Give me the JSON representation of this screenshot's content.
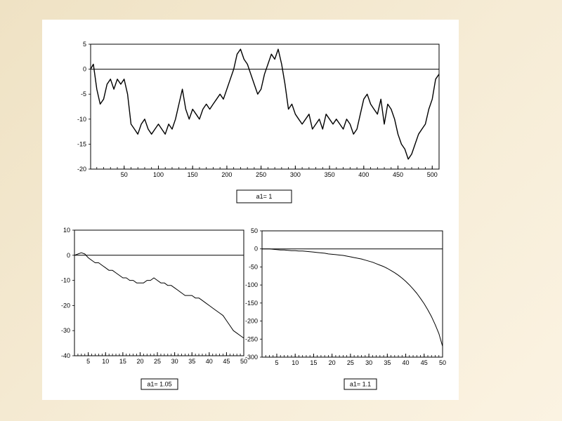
{
  "chart_data": [
    {
      "type": "line",
      "title": "",
      "legend_label": "a1= 1",
      "x_range": [
        1,
        510
      ],
      "ylim": [
        -20,
        5
      ],
      "x_ticks": [
        50,
        100,
        150,
        200,
        250,
        300,
        350,
        400,
        450,
        500
      ],
      "y_ticks": [
        5,
        0,
        -5,
        -10,
        -15,
        -20
      ],
      "zero_line": true,
      "series": [
        {
          "x": [
            1,
            5,
            10,
            15,
            20,
            25,
            30,
            35,
            40,
            45,
            50,
            55,
            60,
            65,
            70,
            75,
            80,
            85,
            90,
            95,
            100,
            105,
            110,
            115,
            120,
            125,
            130,
            135,
            140,
            145,
            150,
            155,
            160,
            165,
            170,
            175,
            180,
            185,
            190,
            195,
            200,
            205,
            210,
            215,
            220,
            225,
            230,
            235,
            240,
            245,
            250,
            255,
            260,
            265,
            270,
            275,
            280,
            285,
            290,
            295,
            300,
            305,
            310,
            315,
            320,
            325,
            330,
            335,
            340,
            345,
            350,
            355,
            360,
            365,
            370,
            375,
            380,
            385,
            390,
            395,
            400,
            405,
            410,
            415,
            420,
            425,
            430,
            435,
            440,
            445,
            450,
            455,
            460,
            465,
            470,
            475,
            480,
            485,
            490,
            495,
            500,
            505,
            510
          ],
          "y": [
            0,
            1,
            -4,
            -7,
            -6,
            -3,
            -2,
            -4,
            -2,
            -3,
            -2,
            -5,
            -11,
            -12,
            -13,
            -11,
            -10,
            -12,
            -13,
            -12,
            -11,
            -12,
            -13,
            -11,
            -12,
            -10,
            -7,
            -4,
            -8,
            -10,
            -8,
            -9,
            -10,
            -8,
            -7,
            -8,
            -7,
            -6,
            -5,
            -6,
            -4,
            -2,
            0,
            3,
            4,
            2,
            1,
            -1,
            -3,
            -5,
            -4,
            -1,
            1,
            3,
            2,
            4,
            1,
            -3,
            -8,
            -7,
            -9,
            -10,
            -11,
            -10,
            -9,
            -12,
            -11,
            -10,
            -12,
            -9,
            -10,
            -11,
            -10,
            -11,
            -12,
            -10,
            -11,
            -13,
            -12,
            -9,
            -6,
            -5,
            -7,
            -8,
            -9,
            -6,
            -11,
            -7,
            -8,
            -10,
            -13,
            -15,
            -16,
            -18,
            -17,
            -15,
            -13,
            -12,
            -11,
            -8,
            -6,
            -2,
            -1
          ]
        }
      ]
    },
    {
      "type": "line",
      "title": "",
      "legend_label": "a1= 1.05",
      "x_range": [
        1,
        50
      ],
      "ylim": [
        -40,
        10
      ],
      "x_ticks": [
        5,
        10,
        15,
        20,
        25,
        30,
        35,
        40,
        45,
        50
      ],
      "y_ticks": [
        10,
        0,
        -10,
        -20,
        -30,
        -40
      ],
      "zero_line": true,
      "series": [
        {
          "x": [
            1,
            2,
            3,
            4,
            5,
            6,
            7,
            8,
            9,
            10,
            11,
            12,
            13,
            14,
            15,
            16,
            17,
            18,
            19,
            20,
            21,
            22,
            23,
            24,
            25,
            26,
            27,
            28,
            29,
            30,
            31,
            32,
            33,
            34,
            35,
            36,
            37,
            38,
            39,
            40,
            41,
            42,
            43,
            44,
            45,
            46,
            47,
            48,
            49,
            50
          ],
          "y": [
            0,
            0.5,
            1,
            0.5,
            -1,
            -2,
            -3,
            -3,
            -4,
            -5,
            -6,
            -6,
            -7,
            -8,
            -9,
            -9,
            -10,
            -10,
            -11,
            -11,
            -11,
            -10,
            -10,
            -9,
            -10,
            -11,
            -11,
            -12,
            -12,
            -13,
            -14,
            -15,
            -16,
            -16,
            -16,
            -17,
            -17,
            -18,
            -19,
            -20,
            -21,
            -22,
            -23,
            -24,
            -26,
            -28,
            -30,
            -31,
            -32,
            -33
          ]
        }
      ]
    },
    {
      "type": "line",
      "title": "",
      "legend_label": "a1= 1.1",
      "x_range": [
        1,
        50
      ],
      "ylim": [
        -300,
        50
      ],
      "x_ticks": [
        5,
        10,
        15,
        20,
        25,
        30,
        35,
        40,
        45,
        50
      ],
      "y_ticks": [
        50,
        0,
        -50,
        -100,
        -150,
        -200,
        -250,
        -300
      ],
      "zero_line": true,
      "series": [
        {
          "x": [
            1,
            2,
            3,
            4,
            5,
            6,
            7,
            8,
            9,
            10,
            11,
            12,
            13,
            14,
            15,
            16,
            17,
            18,
            19,
            20,
            21,
            22,
            23,
            24,
            25,
            26,
            27,
            28,
            29,
            30,
            31,
            32,
            33,
            34,
            35,
            36,
            37,
            38,
            39,
            40,
            41,
            42,
            43,
            44,
            45,
            46,
            47,
            48,
            49,
            50
          ],
          "y": [
            0,
            0,
            0,
            -1,
            -2,
            -3,
            -3,
            -4,
            -5,
            -5,
            -6,
            -6,
            -7,
            -8,
            -9,
            -10,
            -11,
            -12,
            -14,
            -15,
            -16,
            -17,
            -18,
            -20,
            -22,
            -24,
            -26,
            -28,
            -31,
            -34,
            -37,
            -41,
            -45,
            -49,
            -54,
            -60,
            -66,
            -73,
            -81,
            -90,
            -100,
            -111,
            -123,
            -137,
            -152,
            -169,
            -188,
            -210,
            -235,
            -270
          ]
        }
      ]
    }
  ]
}
